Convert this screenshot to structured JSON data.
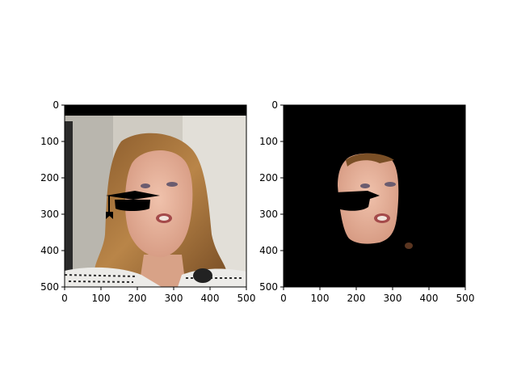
{
  "chart_data": [
    {
      "type": "image",
      "title": "",
      "xlabel": "",
      "ylabel": "",
      "xlim": [
        0,
        500
      ],
      "ylim": [
        500,
        0
      ],
      "xticks": [
        "0",
        "100",
        "200",
        "300",
        "400",
        "500"
      ],
      "yticks": [
        "0",
        "100",
        "200",
        "300",
        "400",
        "500"
      ],
      "content": "portrait photo of a woman with shoulder-length brown hair; black band across the top; black graduation-cap overlay on the left cheek"
    },
    {
      "type": "image",
      "title": "",
      "xlabel": "",
      "ylabel": "",
      "xlim": [
        0,
        500
      ],
      "ylim": [
        500,
        0
      ],
      "xticks": [
        "0",
        "100",
        "200",
        "300",
        "400",
        "500"
      ],
      "yticks": [
        "0",
        "100",
        "200",
        "300",
        "400",
        "500"
      ],
      "content": "segmented face region on black background; black cap-shaped hole on the left cheek"
    }
  ],
  "colors": {
    "background": "#000000",
    "skin": "#e6b09a",
    "hair": "#a8763f",
    "wall": "#d9d6cf",
    "jacket": "#ecebe8"
  }
}
